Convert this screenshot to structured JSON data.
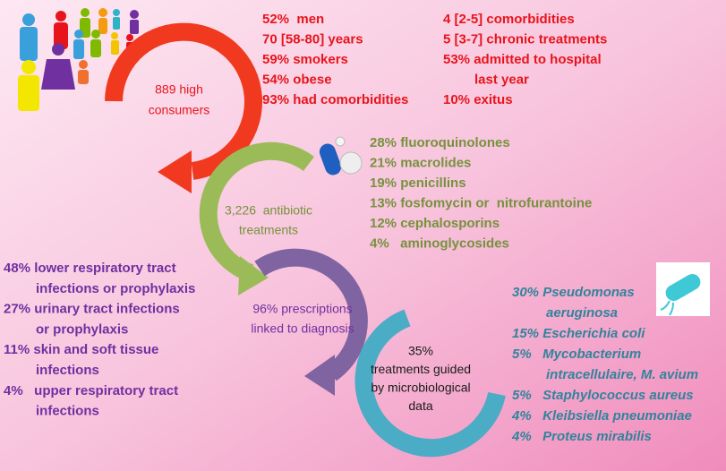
{
  "sections": [
    {
      "center": [
        "889 high",
        "consumers"
      ],
      "columns": [
        [
          [
            "52%  men"
          ],
          [
            "70 [58-80] years"
          ],
          [
            "59% smokers"
          ],
          [
            "54% obese"
          ],
          [
            "93% had comorbidities"
          ]
        ],
        [
          [
            "4 [2-5] comorbidities"
          ],
          [
            "5 [3-7] chronic treatments"
          ],
          [
            "53% admitted to hospital",
            "last year"
          ],
          [
            "10% exitus"
          ]
        ]
      ]
    },
    {
      "center": [
        "3,226  antibiotic",
        "treatments"
      ],
      "columns": [
        [
          [
            "28% fluoroquinolones"
          ],
          [
            "21% macrolides"
          ],
          [
            "19% penicillins"
          ],
          [
            "13% fosfomycin or  nitrofurantoine"
          ],
          [
            "12% cephalosporins"
          ],
          [
            "4%   aminoglycosides"
          ]
        ]
      ]
    },
    {
      "center": [
        "96% prescriptions",
        "linked to diagnosis"
      ],
      "columns": [
        [
          [
            "48% lower respiratory tract",
            "infections or prophylaxis"
          ],
          [
            "27% urinary tract infections",
            "or prophylaxis"
          ],
          [
            "11% skin and soft tissue",
            "infections"
          ],
          [
            "4%   upper respiratory tract",
            "infections"
          ]
        ]
      ]
    },
    {
      "center": [
        "35%",
        "treatments guided",
        "by microbiological",
        "data"
      ],
      "columns": [
        [
          [
            "30% Pseudomonas",
            "aeruginosa"
          ],
          [
            "15% Escherichia coli"
          ],
          [
            "5%   Mycobacterium",
            "intracellulaire, M. avium"
          ],
          [
            "5%   Staphylococcus aureus"
          ],
          [
            "4%   Kleibsiella pneumoniae"
          ],
          [
            "4%   Proteus mirabilis"
          ]
        ]
      ]
    }
  ]
}
